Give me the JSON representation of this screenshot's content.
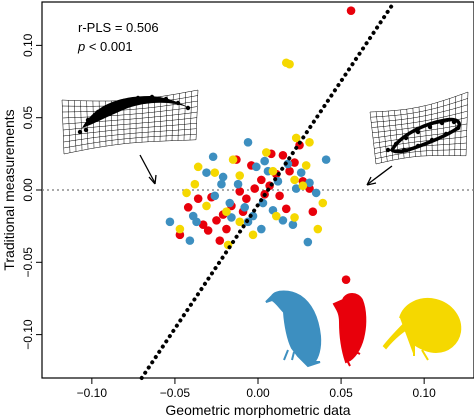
{
  "chart_data": {
    "type": "scatter",
    "xlabel": "Geometric morphometric data",
    "ylabel": "Traditional measurements",
    "xlim": [
      -0.13,
      0.13
    ],
    "ylim": [
      -0.13,
      0.13
    ],
    "x_ticks": [
      -0.1,
      -0.05,
      0.0,
      0.05,
      0.1
    ],
    "x_tick_labels": [
      "−0.10",
      "−0.05",
      "0.00",
      "0.05",
      "0.10"
    ],
    "y_ticks": [
      -0.1,
      -0.05,
      0.0,
      0.05,
      0.1
    ],
    "y_tick_labels": [
      "−0.10",
      "−0.05",
      "0.00",
      "0.05",
      "0.10"
    ],
    "grid": false,
    "stats": {
      "r_pls": "r-PLS = 0.506",
      "p_prefix": "p",
      "p_rest": " < 0.001"
    },
    "reference_line": {
      "y": 0.0,
      "style": "dotted",
      "color": "#777777"
    },
    "trend_line": {
      "style": "dotted",
      "color": "#000000",
      "points": [
        [
          -0.07,
          -0.13
        ],
        [
          0.082,
          0.13
        ]
      ]
    },
    "series": [
      {
        "color": "#e8000b",
        "points": [
          [
            0.056,
            0.124
          ],
          [
            -0.013,
            0.021
          ],
          [
            -0.004,
            0.017
          ],
          [
            0.019,
            0.013
          ],
          [
            0.022,
            0.019
          ],
          [
            0.015,
            0.024
          ],
          [
            0.011,
            0.011
          ],
          [
            0.002,
            0.007
          ],
          [
            0.007,
            0.003
          ],
          [
            -0.002,
            0.001
          ],
          [
            0.004,
            -0.003
          ],
          [
            -0.007,
            -0.006
          ],
          [
            -0.016,
            -0.011
          ],
          [
            -0.021,
            -0.017
          ],
          [
            -0.025,
            -0.021
          ],
          [
            -0.03,
            -0.028
          ],
          [
            -0.033,
            -0.024
          ],
          [
            -0.042,
            -0.012
          ],
          [
            -0.047,
            -0.031
          ],
          [
            -0.019,
            -0.027
          ],
          [
            0.013,
            -0.004
          ],
          [
            0.017,
            -0.013
          ],
          [
            0.027,
            0.006
          ],
          [
            0.033,
            -0.015
          ],
          [
            0.053,
            -0.062
          ],
          [
            -0.028,
            -0.005
          ],
          [
            -0.011,
            -0.001
          ],
          [
            0.031,
            0.001
          ],
          [
            -0.009,
            -0.015
          ],
          [
            0.008,
            0.025
          ],
          [
            -0.036,
            -0.006
          ],
          [
            0.025,
            0.031
          ],
          [
            -0.023,
            -0.035
          ]
        ]
      },
      {
        "color": "#3d8fc0",
        "points": [
          [
            -0.031,
            0.012
          ],
          [
            -0.021,
            0.009
          ],
          [
            -0.012,
            0.004
          ],
          [
            -0.026,
            -0.004
          ],
          [
            -0.017,
            -0.009
          ],
          [
            -0.008,
            -0.012
          ],
          [
            -0.003,
            -0.018
          ],
          [
            0.003,
            -0.009
          ],
          [
            0.009,
            -0.014
          ],
          [
            0.015,
            -0.021
          ],
          [
            0.021,
            -0.024
          ],
          [
            0.012,
            0.006
          ],
          [
            0.006,
            0.013
          ],
          [
            -0.001,
            0.016
          ],
          [
            0.018,
            0.018
          ],
          [
            0.026,
            0.012
          ],
          [
            0.031,
            0.005
          ],
          [
            0.041,
            0.021
          ],
          [
            -0.037,
            -0.022
          ],
          [
            -0.041,
            -0.035
          ],
          [
            -0.006,
            -0.022
          ],
          [
            -0.039,
            -0.018
          ],
          [
            -0.053,
            -0.022
          ],
          [
            -0.006,
            0.033
          ],
          [
            -0.027,
            0.023
          ],
          [
            0.002,
            -0.027
          ],
          [
            0.023,
            0.001
          ],
          [
            -0.022,
            0.004
          ],
          [
            0.03,
            -0.036
          ],
          [
            0.035,
            -0.002
          ],
          [
            -0.016,
            -0.019
          ],
          [
            0.004,
            0.02
          ]
        ]
      },
      {
        "color": "#f5d800",
        "points": [
          [
            0.019,
            0.087
          ],
          [
            0.017,
            0.088
          ],
          [
            0.023,
            0.036
          ],
          [
            0.031,
            0.033
          ],
          [
            -0.026,
            0.012
          ],
          [
            -0.011,
            0.01
          ],
          [
            0.009,
            0.013
          ],
          [
            0.022,
            0.007
          ],
          [
            0.027,
            0.003
          ],
          [
            -0.043,
            -0.002
          ],
          [
            -0.031,
            -0.011
          ],
          [
            -0.019,
            -0.015
          ],
          [
            0.011,
            -0.018
          ],
          [
            0.022,
            -0.019
          ],
          [
            0.039,
            -0.009
          ],
          [
            -0.003,
            -0.031
          ],
          [
            -0.047,
            -0.027
          ],
          [
            -0.011,
            -0.022
          ],
          [
            0.005,
            0.026
          ],
          [
            -0.015,
            0.021
          ],
          [
            -0.036,
            0.016
          ],
          [
            0.029,
            0.017
          ],
          [
            0.036,
            -0.027
          ],
          [
            -0.018,
            -0.038
          ],
          [
            -0.038,
            0.004
          ]
        ]
      }
    ]
  },
  "insets": {
    "left_grid_color": "#000000",
    "right_grid_color": "#000000"
  },
  "birds": [
    {
      "name": "blue-bird-silhouette",
      "color": "#3d8fc0"
    },
    {
      "name": "red-bird-silhouette",
      "color": "#e8000b"
    },
    {
      "name": "yellow-bird-silhouette",
      "color": "#f5d800"
    }
  ]
}
